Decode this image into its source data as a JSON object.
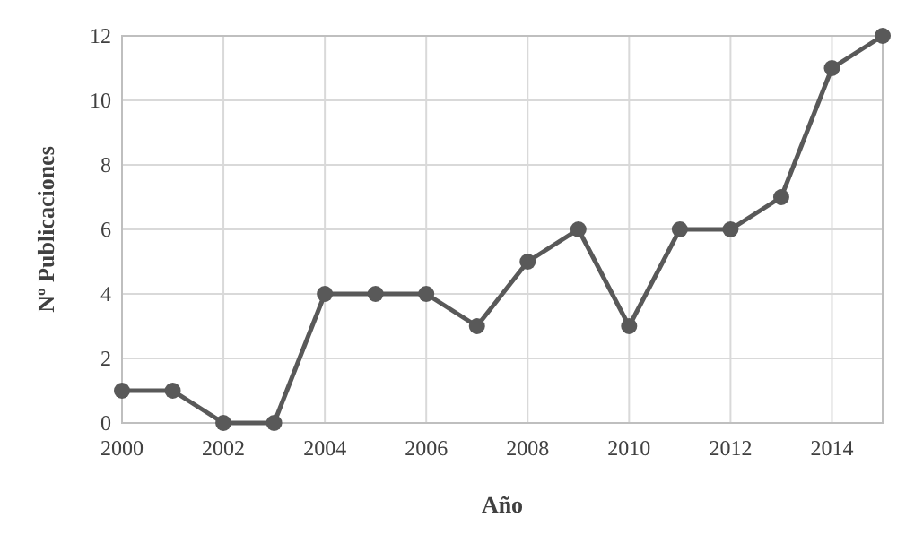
{
  "chart_data": {
    "type": "line",
    "xlabel": "Año",
    "ylabel": "Nº Publicaciones",
    "x": [
      2000,
      2001,
      2002,
      2003,
      2004,
      2005,
      2006,
      2007,
      2008,
      2009,
      2010,
      2011,
      2012,
      2013,
      2014,
      2015
    ],
    "series": [
      {
        "color": "#595959",
        "values": [
          1,
          1,
          0,
          0,
          4,
          4,
          4,
          3,
          5,
          6,
          3,
          6,
          6,
          7,
          11,
          12
        ]
      }
    ],
    "xlim": [
      2000,
      2015
    ],
    "xticks": [
      2000,
      2002,
      2004,
      2006,
      2008,
      2010,
      2012,
      2014
    ],
    "ylim": [
      0,
      12
    ],
    "yticks": [
      0,
      2,
      4,
      6,
      8,
      10,
      12
    ],
    "grid": true,
    "marker": "circle",
    "line_style": "solid"
  }
}
